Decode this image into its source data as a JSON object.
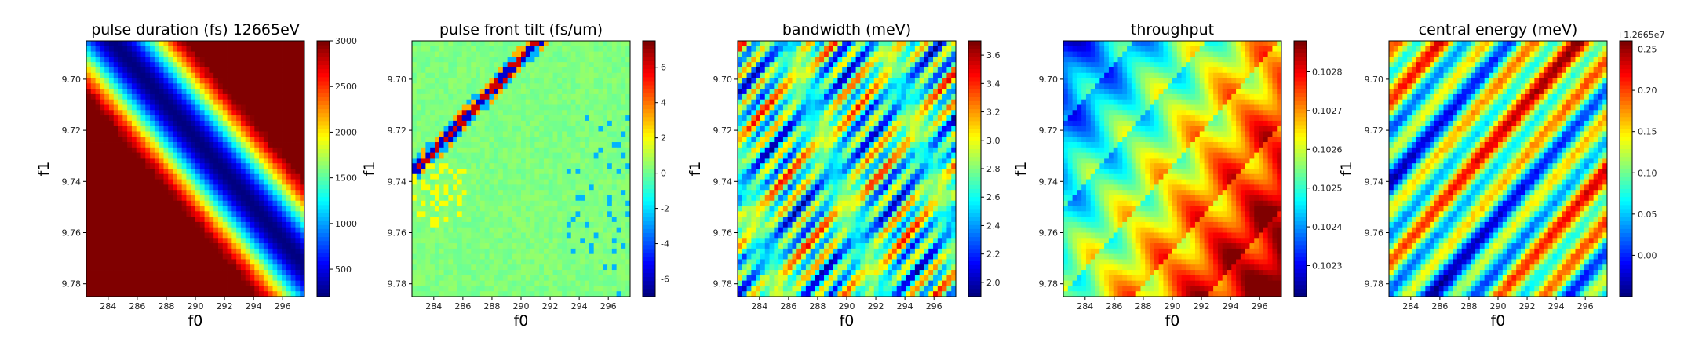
{
  "figure": {
    "layout": "1x5 heatmap panels",
    "colormap": "jet"
  },
  "chart_data": [
    {
      "type": "heatmap",
      "title": "pulse duration (fs) 12665eV",
      "xlabel": "f0",
      "ylabel": "f1",
      "xlim": [
        282.5,
        297.5
      ],
      "ylim": [
        9.785,
        9.685
      ],
      "x_ticks": [
        "284",
        "286",
        "288",
        "290",
        "292",
        "294",
        "296"
      ],
      "y_ticks": [
        "9.70",
        "9.72",
        "9.74",
        "9.76",
        "9.78"
      ],
      "grid": false,
      "colorbar": {
        "range": [
          200,
          3000
        ],
        "ticks": [
          "500",
          "1000",
          "1500",
          "2000",
          "2500",
          "3000"
        ],
        "offset_text": ""
      },
      "pattern": "diagonal low-duration valley from top-right to bottom-left, saturated high values in corners"
    },
    {
      "type": "heatmap",
      "title": "pulse front tilt (fs/um)",
      "xlabel": "f0",
      "ylabel": "f1",
      "xlim": [
        282.5,
        297.5
      ],
      "ylim": [
        9.785,
        9.685
      ],
      "x_ticks": [
        "284",
        "286",
        "288",
        "290",
        "292",
        "294",
        "296"
      ],
      "y_ticks": [
        "9.70",
        "9.72",
        "9.74",
        "9.76",
        "9.78"
      ],
      "grid": false,
      "colorbar": {
        "range": [
          -7,
          7.5
        ],
        "ticks": [
          "-6",
          "-4",
          "-2",
          "0",
          "2",
          "4",
          "6"
        ],
        "offset_text": ""
      },
      "pattern": "mostly near zero with a sharp diagonal discontinuity line in the upper-left"
    },
    {
      "type": "heatmap",
      "title": "bandwidth (meV)",
      "xlabel": "f0",
      "ylabel": "f1",
      "xlim": [
        282.5,
        297.5
      ],
      "ylim": [
        9.785,
        9.685
      ],
      "x_ticks": [
        "284",
        "286",
        "288",
        "290",
        "292",
        "294",
        "296"
      ],
      "y_ticks": [
        "9.70",
        "9.72",
        "9.74",
        "9.76",
        "9.78"
      ],
      "grid": false,
      "colorbar": {
        "range": [
          1.9,
          3.7
        ],
        "ticks": [
          "2.0",
          "2.2",
          "2.4",
          "2.6",
          "2.8",
          "3.0",
          "3.2",
          "3.4",
          "3.6"
        ],
        "offset_text": ""
      },
      "pattern": "oscillating diagonal stripes"
    },
    {
      "type": "heatmap",
      "title": "throughput",
      "xlabel": "f0",
      "ylabel": "f1",
      "xlim": [
        282.5,
        297.5
      ],
      "ylim": [
        9.785,
        9.685
      ],
      "x_ticks": [
        "284",
        "286",
        "288",
        "290",
        "292",
        "294",
        "296"
      ],
      "y_ticks": [
        "9.70",
        "9.72",
        "9.74",
        "9.76",
        "9.78"
      ],
      "grid": false,
      "colorbar": {
        "range": [
          0.10222,
          0.10288
        ],
        "ticks": [
          "0.1023",
          "0.1024",
          "0.1025",
          "0.1026",
          "0.1027",
          "0.1028"
        ],
        "offset_text": ""
      },
      "pattern": "gradient low at top-left rising to high at lower-right with diagonal sawtooth structure"
    },
    {
      "type": "heatmap",
      "title": "central energy (meV)",
      "xlabel": "f0",
      "ylabel": "f1",
      "xlim": [
        282.5,
        297.5
      ],
      "ylim": [
        9.785,
        9.685
      ],
      "x_ticks": [
        "284",
        "286",
        "288",
        "290",
        "292",
        "294",
        "296"
      ],
      "y_ticks": [
        "9.70",
        "9.72",
        "9.74",
        "9.76",
        "9.78"
      ],
      "grid": false,
      "colorbar": {
        "range": [
          -0.05,
          0.26
        ],
        "ticks": [
          "0.00",
          "0.05",
          "0.10",
          "0.15",
          "0.20",
          "0.25"
        ],
        "offset_text": "+1.2665e7"
      },
      "pattern": "diagonal stripes with gradient across"
    }
  ]
}
